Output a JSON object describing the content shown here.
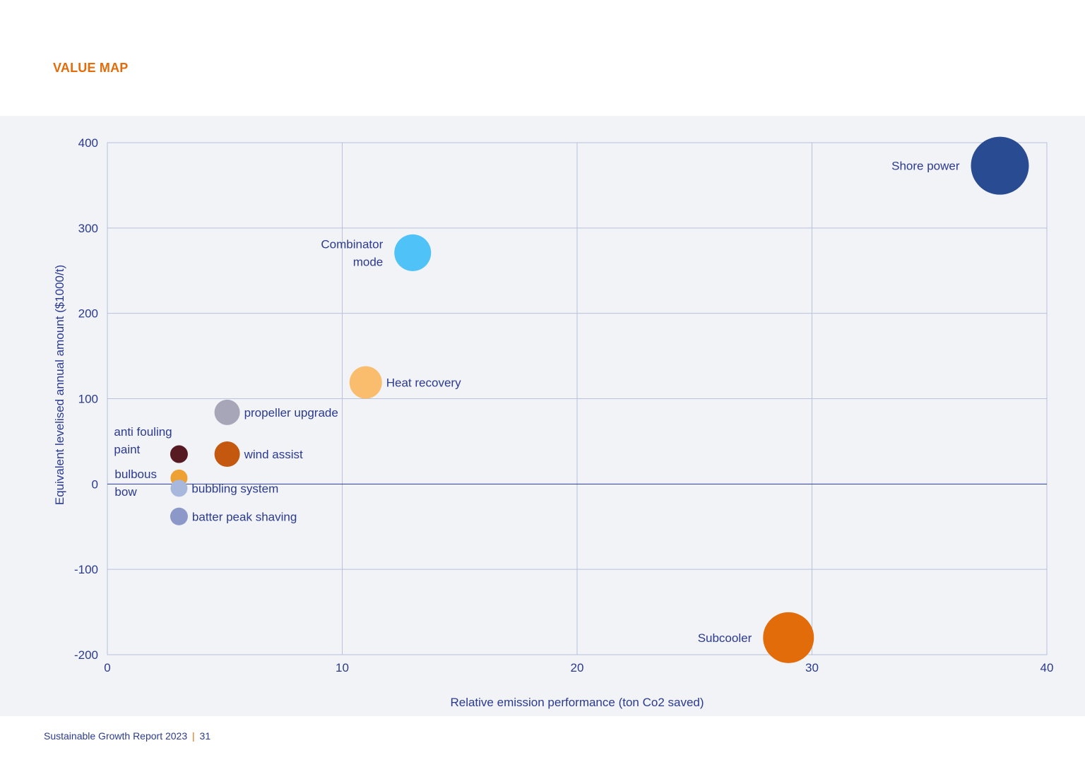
{
  "heading": "VALUE MAP",
  "footer": {
    "report": "Sustainable Growth Report 2023",
    "separator": "|",
    "page": "31"
  },
  "chart_data": {
    "type": "scatter",
    "title": "VALUE MAP",
    "xlabel": "Relative emission performance (ton Co2 saved)",
    "ylabel": "Equivalent levelised annual amount ($1000/t)",
    "xlim": [
      0,
      40
    ],
    "ylim": [
      -200,
      400
    ],
    "xticks": [
      0,
      10,
      20,
      30,
      40
    ],
    "yticks": [
      400,
      300,
      200,
      100,
      0,
      -100,
      -200
    ],
    "xtick_labels": [
      "0",
      "10",
      "20",
      "30",
      "40"
    ],
    "ytick_labels": [
      "400",
      "300",
      "200",
      "100",
      "0",
      "-100",
      "-200"
    ],
    "grid": true,
    "points": [
      {
        "name": "Shore power",
        "label_lines": [
          "Shore power"
        ],
        "x": 38,
        "y": 373,
        "size": 41,
        "color": "#284b91",
        "label_side": "left"
      },
      {
        "name": "Combinator mode",
        "label_lines": [
          "Combinator",
          "mode"
        ],
        "x": 13,
        "y": 271,
        "size": 26,
        "color": "#4fc3f7",
        "label_side": "left"
      },
      {
        "name": "Heat recovery",
        "label_lines": [
          "Heat recovery"
        ],
        "x": 11,
        "y": 119,
        "size": 23,
        "color": "#f9bd6d",
        "label_side": "right"
      },
      {
        "name": "propeller upgrade",
        "label_lines": [
          "propeller upgrade"
        ],
        "x": 5.1,
        "y": 84,
        "size": 18,
        "color": "#a7a6b8",
        "label_side": "right"
      },
      {
        "name": "wind assist",
        "label_lines": [
          "wind assist"
        ],
        "x": 5.1,
        "y": 35,
        "size": 18,
        "color": "#c4580e",
        "label_side": "right"
      },
      {
        "name": "anti fouling paint",
        "label_lines": [
          "anti fouling",
          "paint"
        ],
        "x": 3.05,
        "y": 35,
        "size": 12.5,
        "color": "#561b22",
        "label_side": "above-left"
      },
      {
        "name": "bulbous bow",
        "label_lines": [
          "bulbous",
          "bow"
        ],
        "x": 3.05,
        "y": 7,
        "size": 12,
        "color": "#eea032",
        "label_side": "left"
      },
      {
        "name": "bubbling system",
        "label_lines": [
          "bubbling system"
        ],
        "x": 3.05,
        "y": -5,
        "size": 12,
        "color": "#a8b8dc",
        "label_side": "right"
      },
      {
        "name": "batter peak shaving",
        "label_lines": [
          "batter peak shaving"
        ],
        "x": 3.05,
        "y": -38,
        "size": 12.5,
        "color": "#8c99c8",
        "label_side": "right"
      },
      {
        "name": "Subcooler",
        "label_lines": [
          "Subcooler"
        ],
        "x": 29,
        "y": -180,
        "size": 36,
        "color": "#e36c0a",
        "label_side": "left"
      }
    ]
  }
}
